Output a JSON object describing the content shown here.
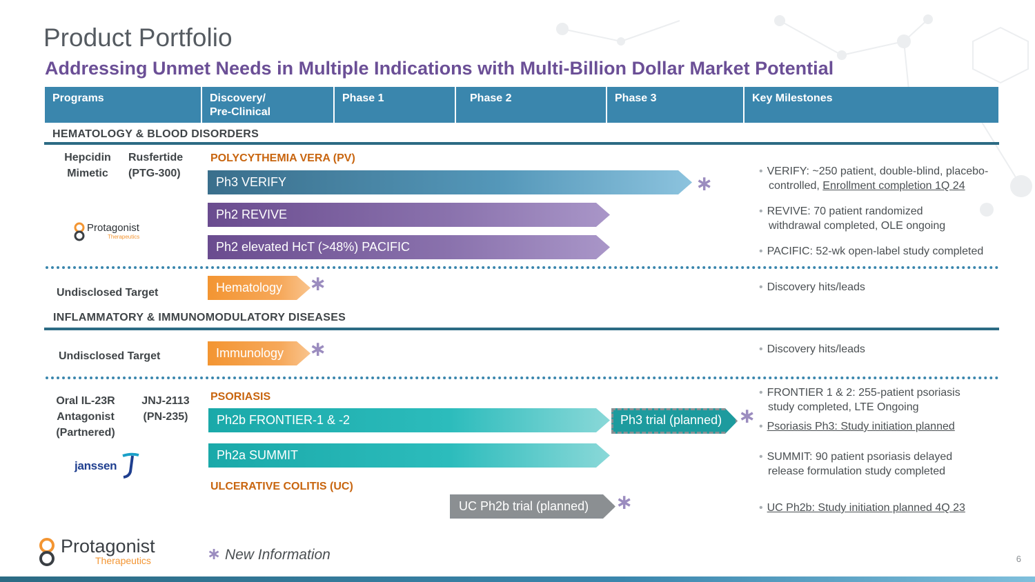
{
  "slide": {
    "title": "Product Portfolio",
    "subtitle": "Addressing Unmet Needs in Multiple Indications with Multi-Billion Dollar Market Potential",
    "page_number": "6",
    "footnote": "New Information",
    "colors": {
      "accent_blue": "#3a86ad",
      "purple": "#6b4f96",
      "orange": "#f39532",
      "teal": "#1aa9a9",
      "indication_orange": "#c8650f"
    }
  },
  "header": {
    "programs": "Programs",
    "discovery_line1": "Discovery/",
    "discovery_line2": "Pre-Clinical",
    "phase1": "Phase 1",
    "phase2": "Phase 2",
    "phase3": "Phase 3",
    "milestones": "Key Milestones"
  },
  "heme": {
    "section_title": "HEMATOLOGY & BLOOD DISORDERS",
    "program_a": {
      "line1": "Hepcidin",
      "line2": "Mimetic"
    },
    "program_b": {
      "line1": "Rusfertide",
      "line2": "(PTG-300)"
    },
    "partner_logo_text": "Protagonist",
    "partner_logo_sub": "Therapeutics",
    "indication": "POLYCYTHEMIA VERA (PV)",
    "bars": {
      "verify": "Ph3 VERIFY",
      "revive": "Ph2 REVIVE",
      "pacific": "Ph2 elevated HcT (>48%) PACIFIC"
    },
    "milestones": {
      "verify_1": "VERIFY: ~250 patient, double-blind, placebo-",
      "verify_2a": "controlled, ",
      "verify_2b": "Enrollment completion 1Q 24",
      "revive_1": "REVIVE: 70 patient randomized",
      "revive_2": "withdrawal completed, OLE ongoing",
      "pacific": "PACIFIC: 52-wk open-label study completed"
    },
    "undisclosed": "Undisclosed Target",
    "discovery_bar": "Hematology",
    "discovery_ms": "Discovery hits/leads"
  },
  "inflam": {
    "section_title": "INFLAMMATORY & IMMUNOMODULATORY DISEASES",
    "undisclosed": "Undisclosed Target",
    "discovery_bar": "Immunology",
    "discovery_ms": "Discovery hits/leads",
    "program_a": {
      "line1": "Oral IL-23R",
      "line2": "Antagonist",
      "line3": "(Partnered)"
    },
    "program_b": {
      "line1": "JNJ-2113",
      "line2": "(PN-235)"
    },
    "partner_logo_text": "janssen",
    "indication_psoriasis": "PSORIASIS",
    "indication_uc": "ULCERATIVE COLITIS (UC)",
    "bars": {
      "frontier": "Ph2b FRONTIER-1 & -2",
      "ph3_planned": "Ph3 trial (planned)",
      "summit": "Ph2a SUMMIT",
      "uc_planned": "UC Ph2b trial (planned)"
    },
    "milestones": {
      "frontier_1": "FRONTIER 1 & 2: 255-patient psoriasis",
      "frontier_2": "study completed, LTE Ongoing",
      "psoriasis_ph3": "Psoriasis Ph3: Study initiation planned",
      "summit_1": "SUMMIT: 90 patient psoriasis delayed",
      "summit_2": "release formulation study completed",
      "uc": "UC Ph2b: Study initiation planned 4Q 23"
    }
  },
  "footer_logo": {
    "name": "Protagonist",
    "sub": "Therapeutics"
  }
}
